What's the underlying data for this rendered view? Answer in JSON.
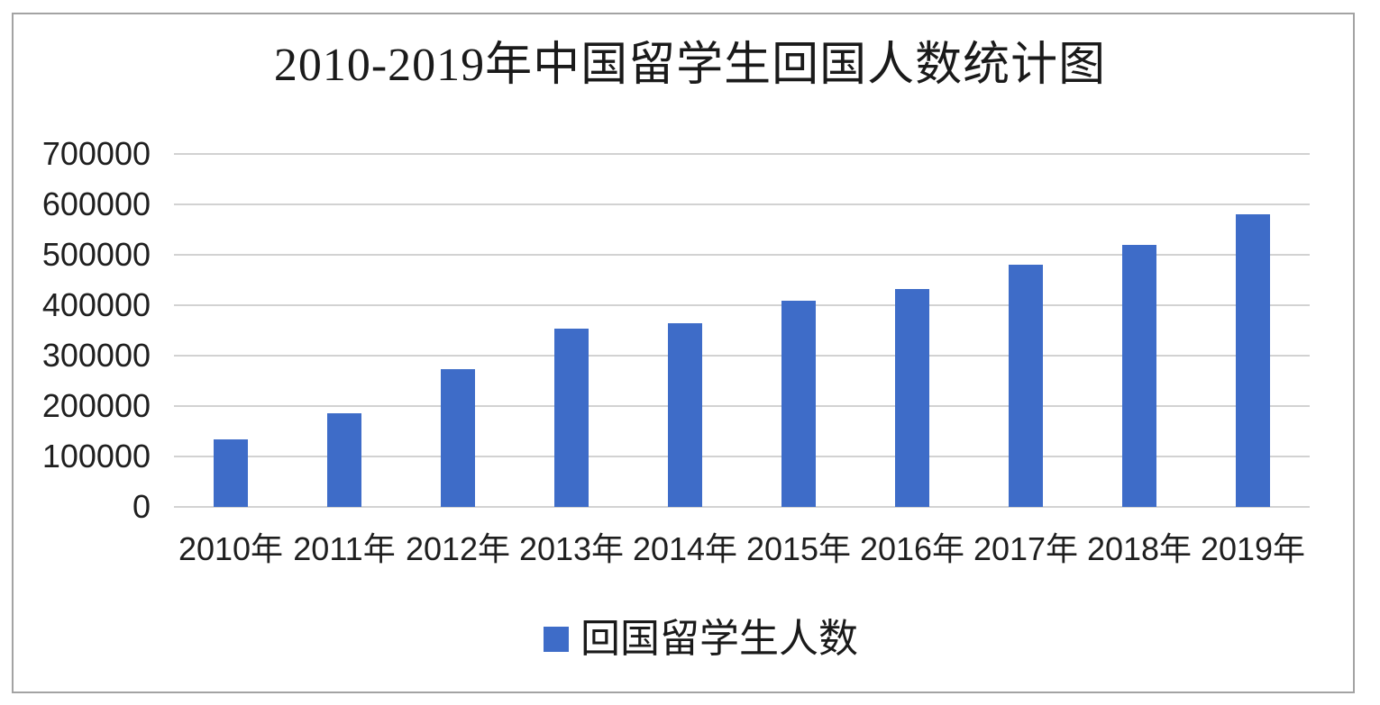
{
  "chart_data": {
    "type": "bar",
    "title": "2010-2019年中国留学生回国人数统计图",
    "categories": [
      "2010年",
      "2011年",
      "2012年",
      "2013年",
      "2014年",
      "2015年",
      "2016年",
      "2017年",
      "2018年",
      "2019年"
    ],
    "series": [
      {
        "name": "回国留学生人数",
        "values": [
          134800,
          186200,
          272900,
          353500,
          364800,
          409100,
          432500,
          480900,
          519400,
          580300
        ]
      }
    ],
    "xlabel": "",
    "ylabel": "",
    "ylim": [
      0,
      700000
    ],
    "y_tick_step": 100000,
    "y_tick_labels": [
      "0",
      "100000",
      "200000",
      "300000",
      "400000",
      "500000",
      "600000",
      "700000"
    ],
    "grid": "horizontal",
    "legend_position": "bottom",
    "colors": {
      "bar": "#3e6cc8",
      "gridline": "#d2d2d2",
      "text": "#1f1f1f",
      "frame_border": "#a3a3a3",
      "background": "#ffffff"
    }
  }
}
